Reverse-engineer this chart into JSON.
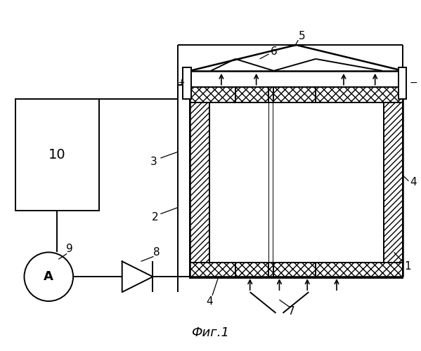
{
  "bg_color": "#ffffff",
  "fig_caption": "Фиг.1",
  "fig_caption_fontsize": 13,
  "label_fontsize": 11,
  "figsize": [
    5.99,
    5.0
  ],
  "dpi": 100
}
